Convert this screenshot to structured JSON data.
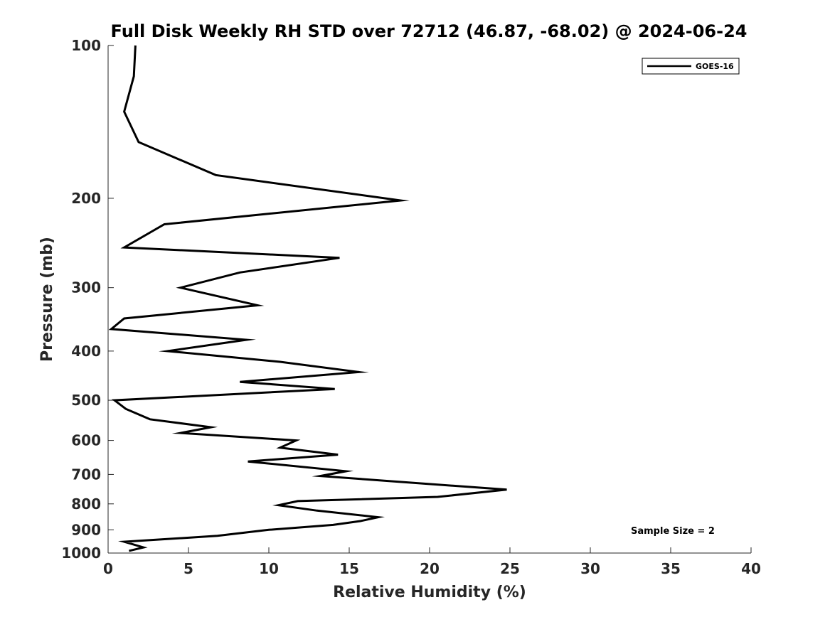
{
  "chart_data": {
    "type": "line",
    "title": "Full Disk Weekly RH STD over 72712 (46.87, -68.02) @ 2024-06-24",
    "xlabel": "Relative Humidity (%)",
    "ylabel": "Pressure (mb)",
    "xlim": [
      0,
      40
    ],
    "ylim": [
      100,
      1000
    ],
    "y_scale": "log",
    "y_reversed": true,
    "grid": false,
    "legend_position": "top-right",
    "x_ticks": [
      0,
      5,
      10,
      15,
      20,
      25,
      30,
      35,
      40
    ],
    "y_ticks": [
      100,
      200,
      300,
      400,
      500,
      600,
      700,
      800,
      900,
      1000
    ],
    "annotation": "Sample Size = 2",
    "series": [
      {
        "name": "GOES-16",
        "color": "#000000",
        "points": [
          [
            1.7,
            100
          ],
          [
            1.6,
            115
          ],
          [
            1.0,
            135
          ],
          [
            1.9,
            155
          ],
          [
            6.7,
            180
          ],
          [
            18.2,
            202
          ],
          [
            3.5,
            225
          ],
          [
            1.0,
            250
          ],
          [
            14.4,
            262
          ],
          [
            8.2,
            280
          ],
          [
            4.5,
            300
          ],
          [
            9.3,
            325
          ],
          [
            1.0,
            345
          ],
          [
            0.2,
            362
          ],
          [
            8.6,
            380
          ],
          [
            3.7,
            400
          ],
          [
            10.7,
            420
          ],
          [
            15.6,
            440
          ],
          [
            8.2,
            460
          ],
          [
            14.1,
            475
          ],
          [
            0.4,
            500
          ],
          [
            1.1,
            520
          ],
          [
            2.6,
            545
          ],
          [
            6.4,
            565
          ],
          [
            4.5,
            580
          ],
          [
            11.7,
            600
          ],
          [
            10.7,
            620
          ],
          [
            14.3,
            640
          ],
          [
            8.7,
            660
          ],
          [
            14.8,
            690
          ],
          [
            13.2,
            705
          ],
          [
            24.8,
            750
          ],
          [
            20.5,
            775
          ],
          [
            11.8,
            790
          ],
          [
            10.6,
            805
          ],
          [
            13.0,
            825
          ],
          [
            16.8,
            850
          ],
          [
            15.7,
            865
          ],
          [
            14.0,
            880
          ],
          [
            10.0,
            900
          ],
          [
            6.8,
            925
          ],
          [
            1.0,
            950
          ],
          [
            2.2,
            975
          ],
          [
            1.3,
            990
          ]
        ]
      }
    ]
  }
}
